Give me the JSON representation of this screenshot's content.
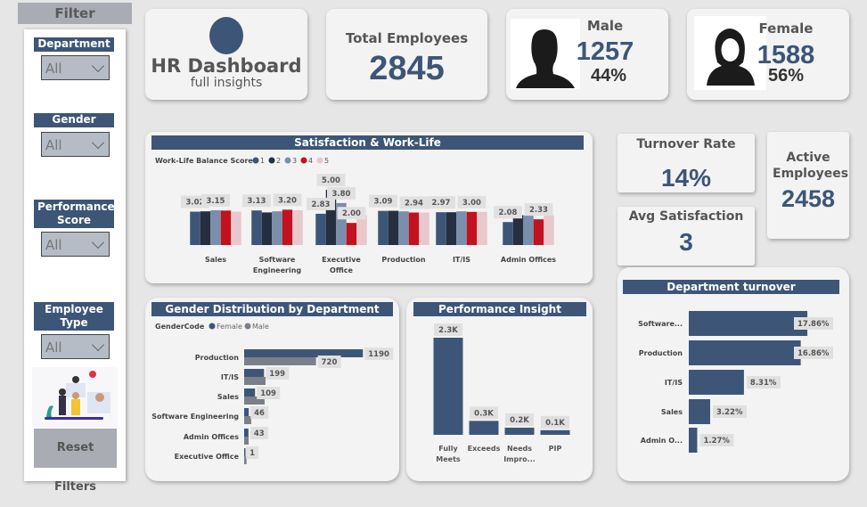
{
  "filter": {
    "title": "Filter",
    "slicers": [
      {
        "label": "Department",
        "value": "All"
      },
      {
        "label": "Gender",
        "value": "All"
      },
      {
        "label": "Performance Score",
        "value": "All"
      },
      {
        "label": "Employee Type",
        "value": "All"
      }
    ],
    "reset_label": "Reset Filters"
  },
  "header": {
    "title": "HR Dashboard",
    "subtitle": "full insights"
  },
  "kpis": {
    "total": {
      "label": "Total Employees",
      "value": "2845"
    },
    "male": {
      "label": "Male",
      "value": "1257",
      "pct": "44%"
    },
    "female": {
      "label": "Female",
      "value": "1588",
      "pct": "56%"
    },
    "turnover": {
      "label": "Turnover Rate",
      "value": "14%"
    },
    "avg_satisfaction": {
      "label": "Avg Satisfaction",
      "value": "3"
    },
    "active": {
      "label": "Active Employees",
      "value": "2458"
    }
  },
  "colors": {
    "navy": "#3d5677",
    "dark": "#252f3f",
    "light_blue": "#7a8fab",
    "red": "#c2121f",
    "pink": "#e8c8cc",
    "male_gray": "#7b7f88"
  },
  "chart_data": [
    {
      "type": "bar",
      "title": "Satisfaction & Work-Life",
      "legend_title": "Work-Life Balance Score",
      "legend_placement": "top-left",
      "categories": [
        "Sales",
        "Software Engineering",
        "Executive Office",
        "Production",
        "IT/IS",
        "Admin Offices"
      ],
      "series": [
        {
          "name": "1",
          "color": "#3d5677",
          "values": [
            3.02,
            3.13,
            2.83,
            3.09,
            2.97,
            2.08
          ]
        },
        {
          "name": "2",
          "color": "#252f3f",
          "values": [
            3.05,
            2.95,
            5.0,
            3.1,
            2.97,
            2.7
          ]
        },
        {
          "name": "3",
          "color": "#7a8fab",
          "values": [
            3.15,
            3.05,
            3.8,
            3.05,
            3.05,
            2.7
          ]
        },
        {
          "name": "4",
          "color": "#c2121f",
          "values": [
            3.12,
            3.2,
            2.0,
            2.94,
            3.0,
            2.33
          ]
        },
        {
          "name": "5",
          "color": "#e8c8cc",
          "values": [
            3.02,
            3.15,
            2.7,
            2.94,
            3.0,
            2.7
          ]
        }
      ],
      "data_labels": [
        [
          "3.02",
          null,
          "3.15",
          null,
          null
        ],
        [
          "3.13",
          null,
          null,
          "3.20",
          null
        ],
        [
          "2.83",
          "5.00",
          "3.80",
          "2.00",
          null
        ],
        [
          "3.09",
          null,
          null,
          "2.94",
          null
        ],
        [
          "2.97",
          null,
          null,
          "3.00",
          null
        ],
        [
          "2.08",
          null,
          null,
          "2.33",
          null
        ]
      ],
      "ylim": [
        0,
        5
      ]
    },
    {
      "type": "bar",
      "orientation": "horizontal",
      "title": "Gender Distribution by Department",
      "legend_title": "GenderCode",
      "legend_placement": "top-left",
      "categories": [
        "Production",
        "IT/IS",
        "Sales",
        "Software Engineering",
        "Admin Offices",
        "Executive Office"
      ],
      "series": [
        {
          "name": "Female",
          "color": "#3d5677",
          "values": [
            1190,
            199,
            109,
            46,
            43,
            1
          ],
          "labels": [
            "1190",
            "199",
            "109",
            "46",
            "43",
            "1"
          ]
        },
        {
          "name": "Male",
          "color": "#7b7f88",
          "values": [
            720,
            214,
            205,
            71,
            45,
            24
          ],
          "labels": [
            "720",
            null,
            null,
            null,
            null,
            null
          ]
        }
      ]
    },
    {
      "type": "bar",
      "title": "Performance Insight",
      "categories": [
        "Fully Meets",
        "Exceeds",
        "Needs Impro...",
        "PIP"
      ],
      "values": [
        2300,
        330,
        170,
        110
      ],
      "labels": [
        "2.3K",
        "0.3K",
        "0.2K",
        "0.1K"
      ]
    },
    {
      "type": "bar",
      "orientation": "horizontal",
      "title": "Department turnover",
      "categories": [
        "Software...",
        "Production",
        "IT/IS",
        "Sales",
        "Admin O..."
      ],
      "values": [
        17.86,
        16.86,
        8.31,
        3.22,
        1.27
      ],
      "labels": [
        "17.86%",
        "16.86%",
        "8.31%",
        "3.22%",
        "1.27%"
      ]
    }
  ]
}
